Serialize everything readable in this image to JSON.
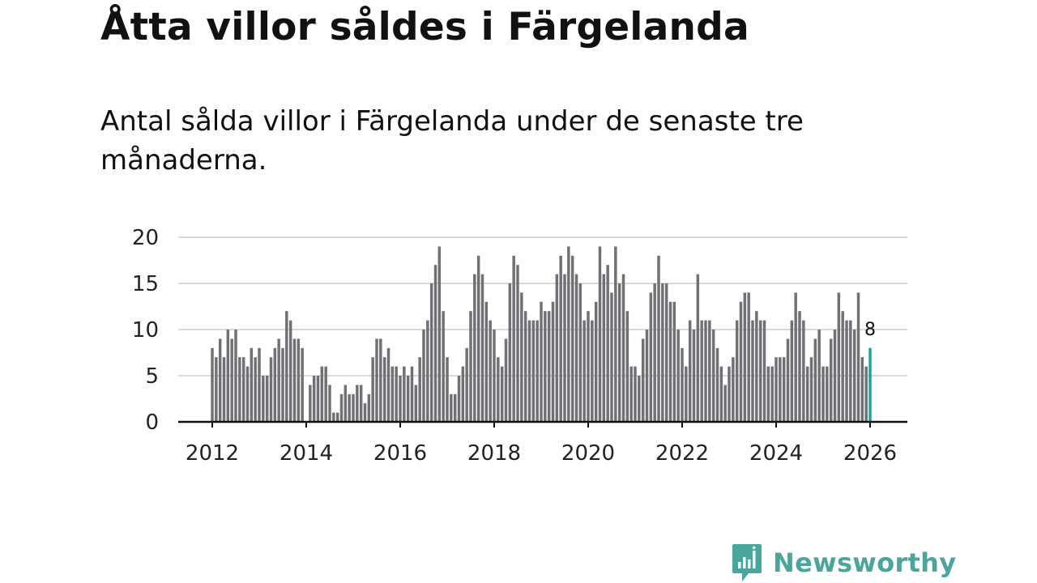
{
  "title": "Åtta villor såldes i Färgelanda",
  "subtitle": "Antal sålda villor i Färgelanda under de senaste tre månaderna.",
  "brand": {
    "name": "Newsworthy",
    "color": "#4aa59c"
  },
  "colors": {
    "bar": "#707075",
    "highlight": "#1fa39b",
    "grid": "#d9d9d9",
    "axis": "#111111"
  },
  "chart_data": {
    "type": "bar",
    "title": "Åtta villor såldes i Färgelanda",
    "xlabel": "",
    "ylabel": "",
    "ylim": [
      0,
      20
    ],
    "yticks": [
      0,
      5,
      10,
      15,
      20
    ],
    "xticks": [
      "2012",
      "2014",
      "2016",
      "2018",
      "2020",
      "2022",
      "2024",
      "2026"
    ],
    "start": "2012-01",
    "frequency": "monthly",
    "values": [
      8,
      7,
      9,
      7,
      10,
      9,
      10,
      7,
      7,
      6,
      8,
      7,
      8,
      5,
      5,
      7,
      8,
      9,
      8,
      12,
      11,
      9,
      9,
      8,
      0,
      4,
      5,
      5,
      6,
      6,
      4,
      1,
      1,
      3,
      4,
      3,
      3,
      4,
      4,
      2,
      3,
      7,
      9,
      9,
      7,
      8,
      6,
      6,
      5,
      6,
      5,
      6,
      4,
      7,
      10,
      11,
      15,
      17,
      19,
      12,
      7,
      3,
      3,
      5,
      6,
      8,
      12,
      16,
      18,
      16,
      13,
      11,
      10,
      7,
      6,
      9,
      15,
      18,
      17,
      14,
      12,
      11,
      11,
      11,
      13,
      12,
      12,
      13,
      16,
      18,
      16,
      19,
      18,
      16,
      15,
      11,
      12,
      11,
      13,
      19,
      16,
      17,
      14,
      19,
      15,
      16,
      12,
      6,
      6,
      5,
      9,
      10,
      14,
      15,
      18,
      15,
      15,
      13,
      13,
      10,
      8,
      6,
      11,
      10,
      16,
      11,
      11,
      11,
      10,
      8,
      6,
      4,
      6,
      7,
      11,
      13,
      14,
      14,
      11,
      12,
      11,
      11,
      6,
      6,
      7,
      7,
      7,
      9,
      11,
      14,
      12,
      11,
      6,
      7,
      9,
      10,
      6,
      6,
      9,
      10,
      14,
      12,
      11,
      11,
      10,
      14,
      7,
      6,
      8
    ],
    "highlight_label": "8"
  }
}
